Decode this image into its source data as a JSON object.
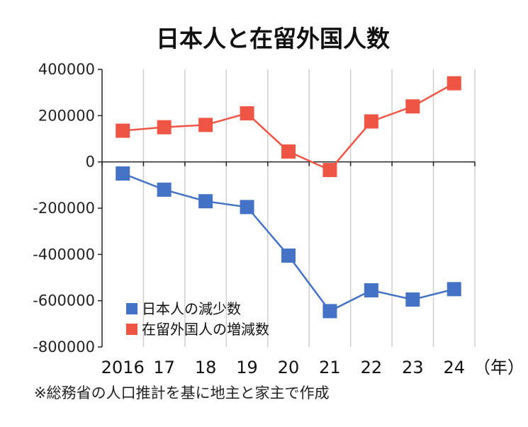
{
  "chart_data": {
    "type": "line",
    "title": "日本人と在留外国人数",
    "categories": [
      "2016",
      "17",
      "18",
      "19",
      "20",
      "21",
      "22",
      "23",
      "24"
    ],
    "x_unit": "（年）",
    "ylim": [
      -800000,
      400000
    ],
    "yticks": [
      "400000",
      "200000",
      "0",
      "-200000",
      "-400000",
      "-600000",
      "-800000"
    ],
    "ytick_values": [
      400000,
      200000,
      0,
      -200000,
      -400000,
      -600000,
      -800000
    ],
    "grid": "vertical",
    "legend_position": "bottom-left",
    "series": [
      {
        "name": "日本人の減少数",
        "color": "#4472c4",
        "values": [
          -50000,
          -120000,
          -170000,
          -195000,
          -405000,
          -645000,
          -555000,
          -595000,
          -550000
        ]
      },
      {
        "name": "在留外国人の増減数",
        "color": "#ee5544",
        "values": [
          135000,
          150000,
          160000,
          210000,
          45000,
          -35000,
          175000,
          240000,
          340000
        ]
      }
    ],
    "source_note": "※総務省の人口推計を基に地主と家主で作成"
  }
}
